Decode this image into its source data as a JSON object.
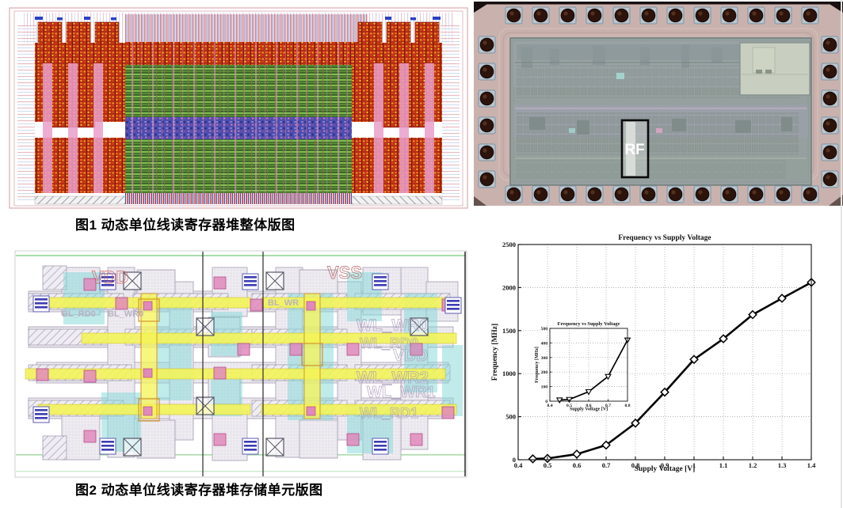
{
  "figures": {
    "fig1": {
      "caption": "图1 动态单位线读寄存器堆整体版图"
    },
    "fig2": {
      "caption": "图2 动态单位线读寄存器堆存储单元版图",
      "labels": [
        "VDD",
        "VSS",
        "BL_RD0",
        "BL_WR0",
        "BL_WR",
        "WL_WR0",
        "WL_RD0",
        "VDD",
        "WL_WR2",
        "WL_WR1",
        "WL_RD1"
      ]
    },
    "die_photo": {
      "region_label": "RF"
    }
  },
  "colors": {
    "chart_line": "#000000",
    "chart_grid": "#9a9a9a",
    "marker_fill": "#ffffff",
    "die_body": "#c9b2ae",
    "die_core": "#96a09e",
    "layout_green": "#4a7a30",
    "layout_red": "#b62c14",
    "layout_yellow": "#f4f455",
    "layout_cyan": "#82d8d8",
    "layout_pink": "#e089bc"
  },
  "chart_data": [
    {
      "type": "line",
      "title": "Frequency vs Supply Voltage",
      "xlabel": "Supply Voltage [V]",
      "ylabel": "Frequency [MHz]",
      "xlim": [
        0.4,
        1.4
      ],
      "ylim": [
        0,
        2500
      ],
      "xtick_labels": [
        "0.4",
        "0.5",
        "0.6",
        "0.7",
        "0.8",
        "0.9",
        "1",
        "1.1",
        "1.2",
        "1.3",
        "1.4"
      ],
      "ytick_labels": [
        "0",
        "500",
        "1000",
        "1500",
        "2000",
        "2500"
      ],
      "grid": true,
      "legend": null,
      "marker": "diamond",
      "x": [
        0.45,
        0.5,
        0.6,
        0.7,
        0.8,
        0.9,
        1.0,
        1.1,
        1.2,
        1.3,
        1.4
      ],
      "y": [
        10,
        15,
        65,
        170,
        425,
        785,
        1165,
        1405,
        1685,
        1875,
        2060
      ]
    },
    {
      "type": "line",
      "title": "Frequency vs Supply Voltage",
      "xlabel": "Supply Voltage [V]",
      "ylabel": "Frequency [MHz]",
      "xlim": [
        0.4,
        0.8
      ],
      "ylim": [
        0,
        500
      ],
      "xtick_labels": [
        "0.4",
        "0.5",
        "0.6",
        "0.7",
        "0.8"
      ],
      "ytick_labels": [
        "0",
        "100",
        "200",
        "300",
        "400",
        "500"
      ],
      "grid": true,
      "legend": null,
      "marker": "triangle-down",
      "x": [
        0.45,
        0.5,
        0.6,
        0.7,
        0.8
      ],
      "y": [
        8,
        12,
        65,
        170,
        420
      ]
    }
  ]
}
